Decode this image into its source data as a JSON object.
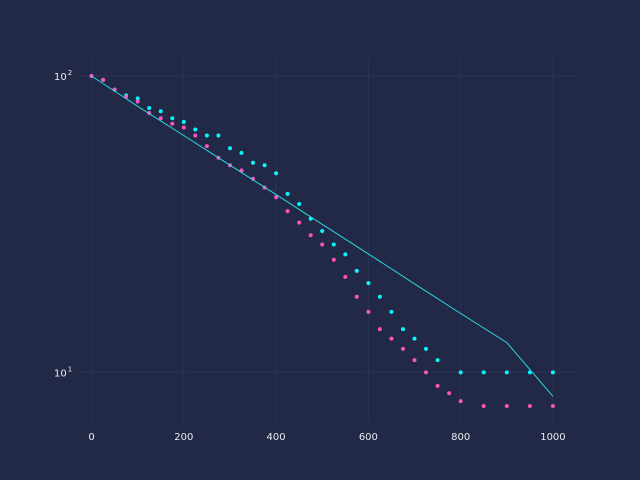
{
  "colors": {
    "background": "#212946",
    "grid": "#2a3459",
    "tick_text": "#e8ebf2",
    "series_cyan": "#08F7FE",
    "series_pink": "#FE53BB",
    "series_line": "#2bd6e0"
  },
  "chart_data": {
    "type": "scatter",
    "title": "",
    "xlabel": "",
    "ylabel": "",
    "xlim": [
      -25,
      1050
    ],
    "ylim": [
      6.8,
      115
    ],
    "yscale": "log",
    "grid": true,
    "legend": "none",
    "x_ticks": [
      "0",
      "200",
      "400",
      "600",
      "800",
      "1000"
    ],
    "y_ticks": [
      {
        "base": "10",
        "exp": "1",
        "value": 10
      },
      {
        "base": "10",
        "exp": "2",
        "value": 100
      }
    ],
    "series": [
      {
        "style": "points",
        "color": "#08F7FE",
        "x": [
          0,
          25,
          50,
          75,
          100,
          125,
          150,
          175,
          200,
          225,
          250,
          275,
          300,
          325,
          350,
          375,
          400,
          425,
          450,
          475,
          500,
          525,
          550,
          575,
          600,
          625,
          650,
          675,
          700,
          725,
          750,
          800,
          850,
          900,
          950,
          1000
        ],
        "y": [
          100,
          97,
          90,
          86,
          84,
          78,
          76,
          72,
          70,
          66,
          63,
          63,
          57,
          55,
          51,
          50,
          47,
          40,
          37,
          33,
          30,
          27,
          25,
          22,
          20,
          18,
          16,
          14,
          13,
          12,
          11,
          10,
          10,
          10,
          10,
          10
        ]
      },
      {
        "style": "points",
        "color": "#FE53BB",
        "x": [
          0,
          25,
          50,
          75,
          100,
          125,
          150,
          175,
          200,
          225,
          250,
          275,
          300,
          325,
          350,
          375,
          400,
          425,
          450,
          475,
          500,
          525,
          550,
          575,
          600,
          625,
          650,
          675,
          700,
          725,
          750,
          775,
          800,
          850,
          900,
          950,
          1000
        ],
        "y": [
          100,
          97,
          90,
          85,
          82,
          75,
          72,
          69,
          67,
          63,
          58,
          53,
          50,
          48,
          45,
          42,
          39,
          35,
          32,
          29,
          27,
          24,
          21,
          18,
          16,
          14,
          13,
          12,
          11,
          10,
          9,
          8.5,
          8,
          7.7,
          7.7,
          7.7,
          7.7
        ]
      },
      {
        "style": "line",
        "color": "#2bd6e0",
        "x": [
          0,
          100,
          200,
          300,
          400,
          500,
          600,
          700,
          800,
          900,
          1000
        ],
        "y": [
          100,
          79,
          63,
          50,
          39.8,
          31.6,
          25.1,
          19.9,
          15.8,
          12.6,
          8.3
        ]
      }
    ]
  }
}
